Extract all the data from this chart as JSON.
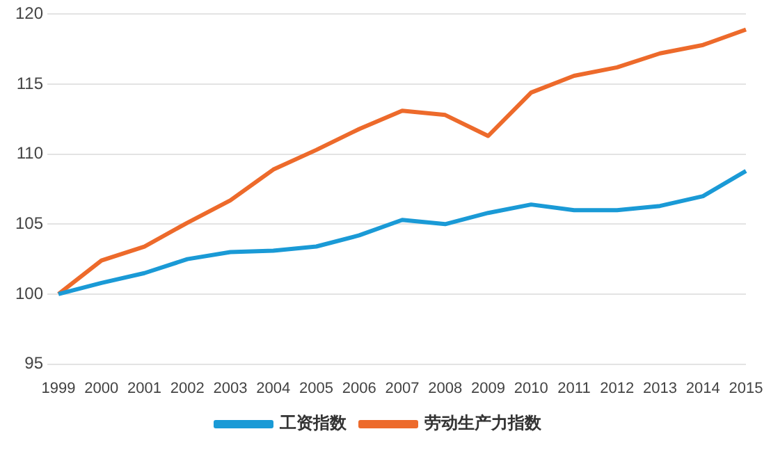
{
  "chart_data": {
    "type": "line",
    "categories": [
      "1999",
      "2000",
      "2001",
      "2002",
      "2003",
      "2004",
      "2005",
      "2006",
      "2007",
      "2008",
      "2009",
      "2010",
      "2011",
      "2012",
      "2013",
      "2014",
      "2015"
    ],
    "series": [
      {
        "name": "工资指数",
        "color": "#1a9ad6",
        "values": [
          100,
          100.8,
          101.5,
          102.5,
          103.0,
          103.1,
          103.4,
          104.2,
          105.3,
          105.0,
          105.8,
          106.4,
          106.0,
          106.0,
          106.3,
          107.0,
          108.8
        ]
      },
      {
        "name": "劳动生产力指数",
        "color": "#ed6a2b",
        "values": [
          100,
          102.4,
          103.4,
          105.1,
          106.7,
          108.9,
          110.3,
          111.8,
          113.1,
          112.8,
          111.3,
          114.4,
          115.6,
          116.2,
          117.2,
          117.8,
          118.9
        ]
      }
    ],
    "ylim": [
      95,
      120
    ],
    "yticks": [
      95,
      100,
      105,
      110,
      115,
      120
    ],
    "grid": "y",
    "legend": "bottom",
    "marker": "none",
    "line_style": "solid"
  }
}
